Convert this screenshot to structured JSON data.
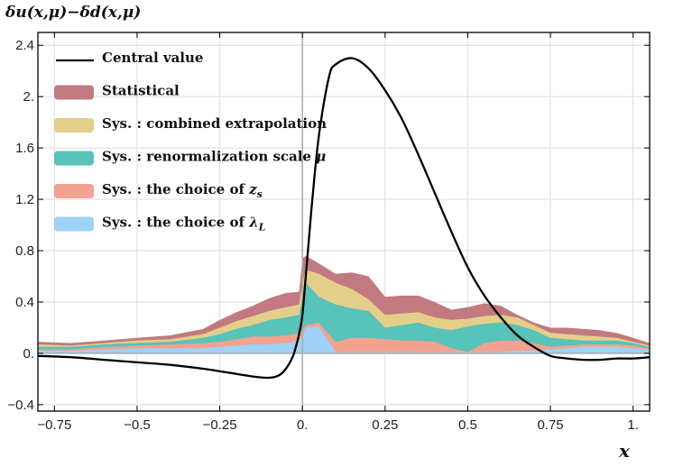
{
  "chart_data": {
    "type": "area",
    "ylabel": "δu(x,μ)−δd(x,μ)",
    "xlabel": "x",
    "xlim": [
      -0.8,
      1.05
    ],
    "ylim": [
      -0.45,
      2.5
    ],
    "x_ticks": [
      {
        "value": -0.75,
        "label": "−0.75"
      },
      {
        "value": -0.5,
        "label": "−0.5"
      },
      {
        "value": -0.25,
        "label": "−0.25"
      },
      {
        "value": 0,
        "label": "0."
      },
      {
        "value": 0.25,
        "label": "0.25"
      },
      {
        "value": 0.5,
        "label": "0.5"
      },
      {
        "value": 0.75,
        "label": "0.75"
      },
      {
        "value": 1.0,
        "label": "1."
      }
    ],
    "y_ticks": [
      {
        "value": -0.4,
        "label": "−0.4"
      },
      {
        "value": 0,
        "label": "0."
      },
      {
        "value": 0.4,
        "label": "0.4"
      },
      {
        "value": 0.8,
        "label": "0.8"
      },
      {
        "value": 1.2,
        "label": "1.2"
      },
      {
        "value": 1.6,
        "label": "1.6"
      },
      {
        "value": 2.0,
        "label": "2."
      },
      {
        "value": 2.4,
        "label": "2.4"
      }
    ],
    "grid": true,
    "legend_position": "top-left",
    "central_value": {
      "name": "Central value",
      "color": "#000000",
      "x": [
        -0.8,
        -0.7,
        -0.6,
        -0.5,
        -0.4,
        -0.3,
        -0.2,
        -0.15,
        -0.1,
        -0.07,
        -0.05,
        -0.03,
        -0.02,
        -0.01,
        0,
        0.01,
        0.02,
        0.03,
        0.05,
        0.08,
        0.1,
        0.15,
        0.2,
        0.25,
        0.3,
        0.35,
        0.4,
        0.45,
        0.5,
        0.55,
        0.6,
        0.65,
        0.7,
        0.75,
        0.8,
        0.85,
        0.9,
        0.95,
        1.0,
        1.05
      ],
      "y": [
        -0.02,
        -0.03,
        -0.05,
        -0.07,
        -0.09,
        -0.12,
        -0.16,
        -0.18,
        -0.19,
        -0.17,
        -0.12,
        -0.03,
        0.05,
        0.15,
        0.3,
        0.6,
        0.9,
        1.2,
        1.7,
        2.15,
        2.25,
        2.3,
        2.22,
        2.05,
        1.83,
        1.55,
        1.25,
        0.95,
        0.67,
        0.45,
        0.28,
        0.14,
        0.05,
        -0.02,
        -0.04,
        -0.05,
        -0.05,
        -0.04,
        -0.04,
        -0.03
      ]
    },
    "uncertainty_x": [
      -0.8,
      -0.7,
      -0.6,
      -0.5,
      -0.4,
      -0.3,
      -0.25,
      -0.2,
      -0.15,
      -0.1,
      -0.05,
      -0.01,
      0,
      0.01,
      0.05,
      0.1,
      0.15,
      0.2,
      0.25,
      0.3,
      0.35,
      0.4,
      0.45,
      0.5,
      0.55,
      0.6,
      0.65,
      0.7,
      0.75,
      0.8,
      0.85,
      0.9,
      0.95,
      1.0,
      1.05
    ],
    "series": [
      {
        "name": "Sys. : the choice of λ_L",
        "color": "#9fd2f6",
        "upper": [
          0.02,
          0.02,
          0.03,
          0.04,
          0.04,
          0.04,
          0.05,
          0.06,
          0.07,
          0.07,
          0.08,
          0.1,
          0.14,
          0.2,
          0.21,
          0.01,
          0.01,
          0.01,
          0.01,
          0.01,
          0.01,
          0.01,
          0.01,
          0.01,
          0.01,
          0.01,
          0.02,
          0.02,
          0.03,
          0.04,
          0.05,
          0.05,
          0.05,
          0.04,
          0.03
        ]
      },
      {
        "name": "Sys. : the choice of z_s",
        "color": "#f2a290",
        "upper": [
          0.03,
          0.03,
          0.05,
          0.06,
          0.07,
          0.08,
          0.09,
          0.11,
          0.13,
          0.13,
          0.14,
          0.16,
          0.18,
          0.22,
          0.24,
          0.09,
          0.12,
          0.12,
          0.11,
          0.1,
          0.1,
          0.09,
          0.04,
          0.01,
          0.08,
          0.1,
          0.1,
          0.08,
          0.05,
          0.06,
          0.07,
          0.07,
          0.07,
          0.06,
          0.04
        ]
      },
      {
        "name": "Sys. : renormalization scale μ",
        "color": "#57c3b9",
        "upper": [
          0.05,
          0.05,
          0.07,
          0.08,
          0.09,
          0.12,
          0.15,
          0.19,
          0.22,
          0.26,
          0.28,
          0.3,
          0.45,
          0.55,
          0.44,
          0.38,
          0.35,
          0.33,
          0.2,
          0.22,
          0.24,
          0.2,
          0.18,
          0.21,
          0.23,
          0.24,
          0.22,
          0.18,
          0.12,
          0.11,
          0.1,
          0.1,
          0.1,
          0.08,
          0.05
        ]
      },
      {
        "name": "Sys. : combined extrapolation",
        "color": "#e3cf89",
        "upper": [
          0.07,
          0.06,
          0.08,
          0.1,
          0.11,
          0.15,
          0.2,
          0.25,
          0.29,
          0.33,
          0.36,
          0.38,
          0.55,
          0.65,
          0.62,
          0.55,
          0.5,
          0.42,
          0.3,
          0.31,
          0.32,
          0.28,
          0.26,
          0.27,
          0.29,
          0.3,
          0.28,
          0.22,
          0.16,
          0.15,
          0.14,
          0.13,
          0.12,
          0.09,
          0.06
        ]
      },
      {
        "name": "Statistical",
        "color": "#c27a80",
        "upper": [
          0.09,
          0.08,
          0.1,
          0.12,
          0.14,
          0.19,
          0.26,
          0.32,
          0.37,
          0.43,
          0.47,
          0.48,
          0.74,
          0.76,
          0.7,
          0.62,
          0.63,
          0.6,
          0.44,
          0.45,
          0.45,
          0.4,
          0.34,
          0.36,
          0.39,
          0.37,
          0.3,
          0.24,
          0.2,
          0.2,
          0.19,
          0.18,
          0.16,
          0.12,
          0.08
        ]
      }
    ],
    "legend": [
      {
        "label": "Central value",
        "kind": "line",
        "color": "#000000"
      },
      {
        "label": "Statistical",
        "kind": "patch",
        "color": "#c27a80"
      },
      {
        "label": "Sys. : combined extrapolation",
        "kind": "patch",
        "color": "#e3cf89"
      },
      {
        "label": "Sys. : renormalization scale",
        "sym": "μ",
        "sub": "",
        "kind": "patch",
        "color": "#57c3b9"
      },
      {
        "label": "Sys. : the choice of",
        "sym": "z",
        "sub": "s",
        "kind": "patch",
        "color": "#f2a290"
      },
      {
        "label": "Sys. : the choice of",
        "sym": "λ",
        "sub": "L",
        "kind": "patch",
        "color": "#9fd2f6"
      }
    ]
  }
}
